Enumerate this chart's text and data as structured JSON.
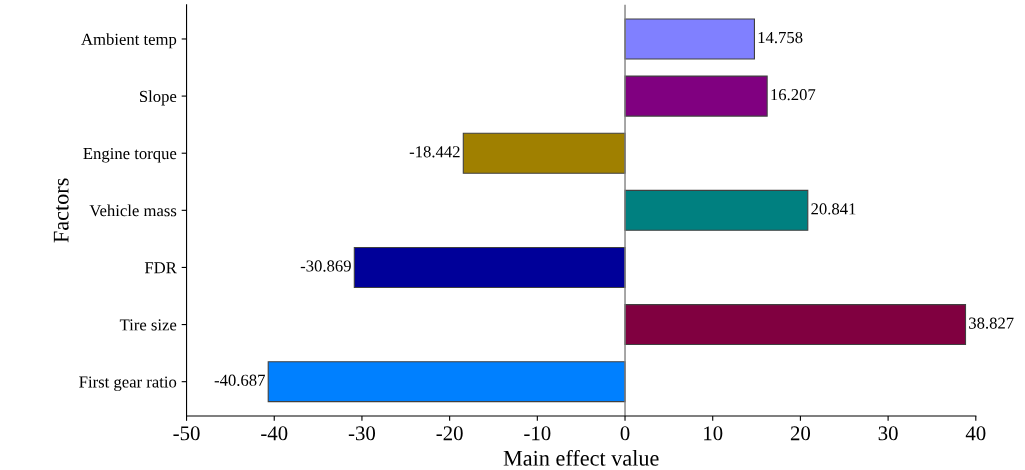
{
  "chart_data": {
    "type": "bar",
    "orientation": "horizontal",
    "xlabel": "Main effect value",
    "ylabel": "Factors",
    "categories": [
      "Ambient temp",
      "Slope",
      "Engine torque",
      "Vehicle mass",
      "FDR",
      "Tire size",
      "First gear ratio"
    ],
    "values": [
      14.758,
      16.207,
      -18.442,
      20.841,
      -30.869,
      38.827,
      -40.687
    ],
    "colors": [
      "#8080ff",
      "#800080",
      "#a08000",
      "#008080",
      "#000099",
      "#800040",
      "#0080ff"
    ],
    "data_labels": true,
    "xlim": [
      -50,
      40
    ],
    "xticks": [
      -50,
      -40,
      -30,
      -20,
      -10,
      0,
      10,
      20,
      30,
      40
    ],
    "ref_lines": [
      {
        "axis": "x",
        "value": 0,
        "color": "#808080"
      }
    ],
    "grid": false,
    "legend": false
  }
}
